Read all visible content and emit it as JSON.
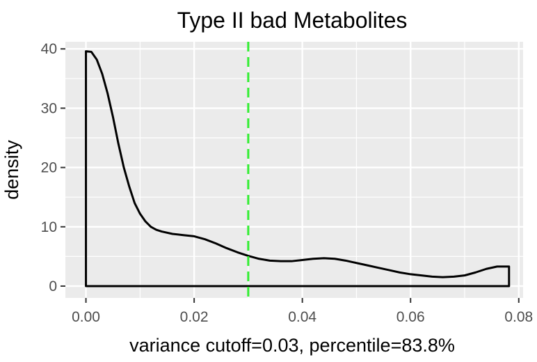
{
  "chart_data": {
    "type": "area",
    "title": "Type II bad Metabolites",
    "xlabel": "variance cutoff=0.03, percentile=83.8%",
    "ylabel": "density",
    "xlim": [
      -0.0038,
      0.0808
    ],
    "ylim": [
      -2,
      41.2
    ],
    "x_ticks": [
      0.0,
      0.02,
      0.04,
      0.06,
      0.08
    ],
    "x_tick_labels": [
      "0.00",
      "0.02",
      "0.04",
      "0.06",
      "0.08"
    ],
    "y_ticks": [
      0,
      10,
      20,
      30,
      40
    ],
    "y_tick_labels": [
      "0",
      "10",
      "20",
      "30",
      "40"
    ],
    "grid": true,
    "colors": {
      "panel": "#ebebeb",
      "grid": "#ffffff",
      "curve": "#000000",
      "cutoff": "#33ee33"
    },
    "series": [
      {
        "x": [
          0.0,
          0.001,
          0.002,
          0.003,
          0.004,
          0.005,
          0.006,
          0.007,
          0.008,
          0.009,
          0.01,
          0.011,
          0.012,
          0.013,
          0.014,
          0.016,
          0.018,
          0.02,
          0.022,
          0.024,
          0.026,
          0.028,
          0.03,
          0.032,
          0.034,
          0.036,
          0.038,
          0.04,
          0.042,
          0.044,
          0.046,
          0.048,
          0.05,
          0.052,
          0.054,
          0.056,
          0.058,
          0.06,
          0.062,
          0.064,
          0.066,
          0.068,
          0.07,
          0.072,
          0.074,
          0.076,
          0.0782
        ],
        "y": [
          39.6,
          39.5,
          38.2,
          35.8,
          32.5,
          28.5,
          24.0,
          20.0,
          16.8,
          14.0,
          12.2,
          10.9,
          10.0,
          9.5,
          9.2,
          8.8,
          8.6,
          8.4,
          7.9,
          7.2,
          6.4,
          5.7,
          5.1,
          4.6,
          4.3,
          4.2,
          4.2,
          4.4,
          4.6,
          4.7,
          4.6,
          4.3,
          3.9,
          3.5,
          3.1,
          2.7,
          2.3,
          2.0,
          1.8,
          1.6,
          1.5,
          1.6,
          1.8,
          2.3,
          2.9,
          3.3,
          3.3
        ]
      }
    ],
    "vline": {
      "x": 0.03
    }
  }
}
